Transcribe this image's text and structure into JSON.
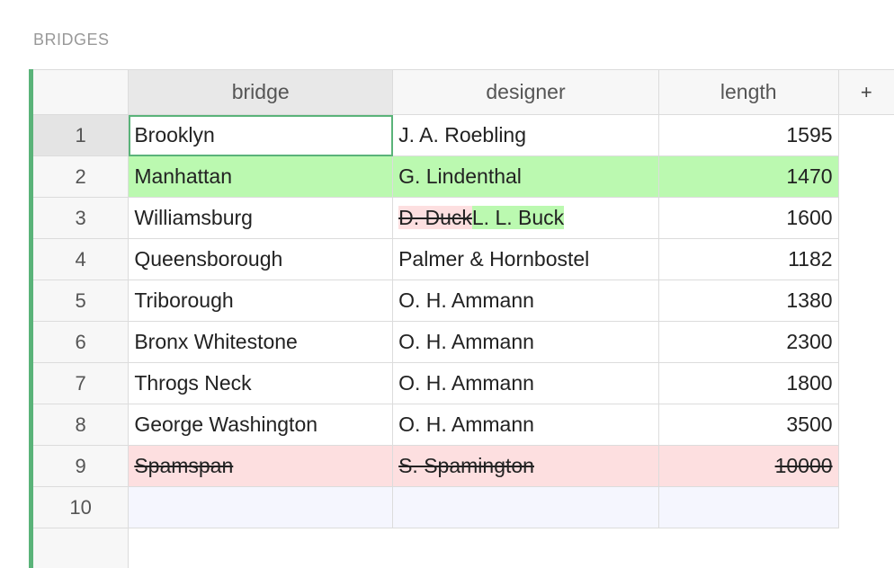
{
  "section": {
    "title": "BRIDGES"
  },
  "columns": {
    "c1": "bridge",
    "c2": "designer",
    "c3": "length",
    "add": "+"
  },
  "rows": [
    {
      "num": "1",
      "bridge": "Brooklyn",
      "designer": "J. A. Roebling",
      "length": "1595"
    },
    {
      "num": "2",
      "bridge": "Manhattan",
      "designer": "G. Lindenthal",
      "length": "1470"
    },
    {
      "num": "3",
      "bridge": "Williamsburg",
      "designer_old": "D. Duck",
      "designer_new": "L. L. Buck",
      "length": "1600"
    },
    {
      "num": "4",
      "bridge": "Queensborough",
      "designer": "Palmer & Hornbostel",
      "length": "1182"
    },
    {
      "num": "5",
      "bridge": "Triborough",
      "designer": "O. H. Ammann",
      "length": "1380"
    },
    {
      "num": "6",
      "bridge": "Bronx Whitestone",
      "designer": "O. H. Ammann",
      "length": "2300"
    },
    {
      "num": "7",
      "bridge": "Throgs Neck",
      "designer": "O. H. Ammann",
      "length": "1800"
    },
    {
      "num": "8",
      "bridge": "George Washington",
      "designer": "O. H. Ammann",
      "length": "3500"
    },
    {
      "num": "9",
      "bridge": "Spamspan",
      "designer": "S. Spamington",
      "length": "10000"
    },
    {
      "num": "10",
      "bridge": "",
      "designer": "",
      "length": ""
    }
  ],
  "colors": {
    "accent": "#5ab379",
    "added": "#bbf9b0",
    "removed": "#fddfe0",
    "new_row": "#f5f6fe"
  }
}
